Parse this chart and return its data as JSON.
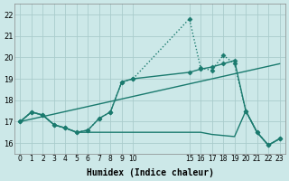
{
  "xlabel": "Humidex (Indice chaleur)",
  "bg_color": "#cce8e8",
  "grid_color": "#aacccc",
  "line_color": "#1a7a6e",
  "xlim": [
    -0.5,
    23.5
  ],
  "ylim": [
    15.5,
    22.5
  ],
  "xticks": [
    0,
    1,
    2,
    3,
    4,
    5,
    6,
    7,
    8,
    9,
    10,
    15,
    16,
    17,
    18,
    19,
    20,
    21,
    22,
    23
  ],
  "yticks": [
    16,
    17,
    18,
    19,
    20,
    21,
    22
  ],
  "line1_dotted": {
    "x": [
      0,
      1,
      2,
      3,
      4,
      5,
      6,
      7,
      8,
      9,
      10,
      15,
      16,
      17,
      18,
      19,
      20,
      21,
      22,
      23
    ],
    "y": [
      17.0,
      17.45,
      17.3,
      16.85,
      16.7,
      16.5,
      16.6,
      17.15,
      17.45,
      18.85,
      19.0,
      21.8,
      19.5,
      19.4,
      20.1,
      19.7,
      17.5,
      16.5,
      15.9,
      16.2
    ]
  },
  "line2_diagonal": {
    "x": [
      0,
      23
    ],
    "y": [
      17.0,
      19.7
    ]
  },
  "line3_zigzag": {
    "x": [
      0,
      1,
      2,
      3,
      4,
      5,
      6,
      7,
      8,
      9,
      10,
      15,
      16,
      17,
      18,
      19,
      20,
      21,
      22,
      23
    ],
    "y": [
      17.0,
      17.45,
      17.3,
      16.85,
      16.7,
      16.5,
      16.6,
      17.15,
      17.45,
      18.85,
      19.0,
      19.3,
      19.45,
      19.55,
      19.7,
      19.85,
      17.5,
      16.5,
      15.9,
      16.2
    ]
  },
  "line4_flat": {
    "x": [
      0,
      1,
      2,
      3,
      4,
      5,
      6,
      7,
      8,
      9,
      10,
      15,
      16,
      17,
      18,
      19,
      20,
      21,
      22,
      23
    ],
    "y": [
      17.0,
      17.45,
      17.3,
      16.85,
      16.7,
      16.5,
      16.5,
      16.5,
      16.5,
      16.5,
      16.5,
      16.5,
      16.5,
      16.4,
      16.35,
      16.3,
      17.5,
      16.5,
      15.9,
      16.2
    ]
  }
}
